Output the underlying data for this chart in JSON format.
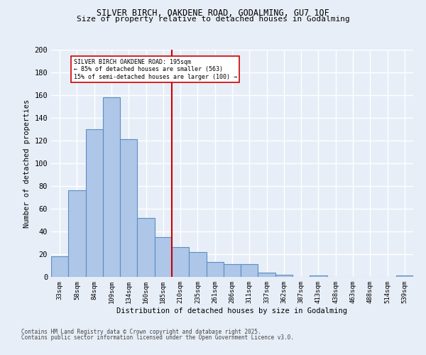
{
  "title1": "SILVER BIRCH, OAKDENE ROAD, GODALMING, GU7 1QF",
  "title2": "Size of property relative to detached houses in Godalming",
  "xlabel": "Distribution of detached houses by size in Godalming",
  "ylabel": "Number of detached properties",
  "bar_labels": [
    "33sqm",
    "58sqm",
    "84sqm",
    "109sqm",
    "134sqm",
    "160sqm",
    "185sqm",
    "210sqm",
    "235sqm",
    "261sqm",
    "286sqm",
    "311sqm",
    "337sqm",
    "362sqm",
    "387sqm",
    "413sqm",
    "438sqm",
    "463sqm",
    "488sqm",
    "514sqm",
    "539sqm"
  ],
  "bar_values": [
    18,
    76,
    130,
    158,
    121,
    52,
    35,
    26,
    22,
    13,
    11,
    11,
    4,
    2,
    0,
    1,
    0,
    0,
    0,
    0,
    1
  ],
  "bar_color": "#aec6e8",
  "bar_edge_color": "#5a8fc2",
  "vline_x": 6.5,
  "vline_color": "#cc0000",
  "annotation_text": "SILVER BIRCH OAKDENE ROAD: 195sqm\n← 85% of detached houses are smaller (563)\n15% of semi-detached houses are larger (100) →",
  "annotation_box_color": "#cc0000",
  "annotation_bg": "#ffffff",
  "ylim": [
    0,
    200
  ],
  "yticks": [
    0,
    20,
    40,
    60,
    80,
    100,
    120,
    140,
    160,
    180,
    200
  ],
  "footnote1": "Contains HM Land Registry data © Crown copyright and database right 2025.",
  "footnote2": "Contains public sector information licensed under the Open Government Licence v3.0.",
  "bg_color": "#e8eef8",
  "grid_color": "#ffffff"
}
